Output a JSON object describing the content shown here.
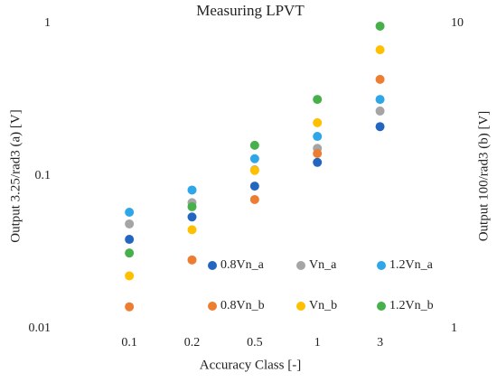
{
  "chart_data": {
    "type": "scatter",
    "title": "Measuring LPVT",
    "xlabel": "Accuracy Class [-]",
    "ylabel": "Output 3.25/rad3 (a) [V]",
    "y2label": "Output 100/rad3 (b) [V]",
    "categories": [
      "0.1",
      "0.2",
      "0.5",
      "1",
      "3"
    ],
    "ylog": true,
    "ylim": [
      0.01,
      1
    ],
    "yticks": [
      0.01,
      0.1,
      1
    ],
    "y2log": true,
    "y2lim": [
      1,
      10
    ],
    "y2ticks": [
      1,
      10
    ],
    "legend": "lower right",
    "series": [
      {
        "name": "0.8Vn_a",
        "color": "#2266c0",
        "values": [
          0.0385,
          0.054,
          0.086,
          0.123,
          0.211
        ]
      },
      {
        "name": "Vn_a",
        "color": "#a5a5a5",
        "values": [
          0.0486,
          0.067,
          0.11,
          0.152,
          0.267
        ]
      },
      {
        "name": "1.2Vn_a",
        "color": "#2ea6e8",
        "values": [
          0.058,
          0.081,
          0.13,
          0.182,
          0.318
        ]
      },
      {
        "name": "0.8Vn_b",
        "color": "#ed7d31",
        "axis": "y2",
        "values": [
          1.18,
          1.68,
          2.65,
          3.75,
          6.56
        ]
      },
      {
        "name": "Vn_b",
        "color": "#ffc000",
        "axis": "y2",
        "values": [
          1.49,
          2.11,
          3.3,
          4.73,
          8.2
        ]
      },
      {
        "name": "1.2Vn_b",
        "color": "#48b04a",
        "axis": "y2",
        "values": [
          1.77,
          2.51,
          3.99,
          5.64,
          9.8
        ]
      }
    ]
  }
}
